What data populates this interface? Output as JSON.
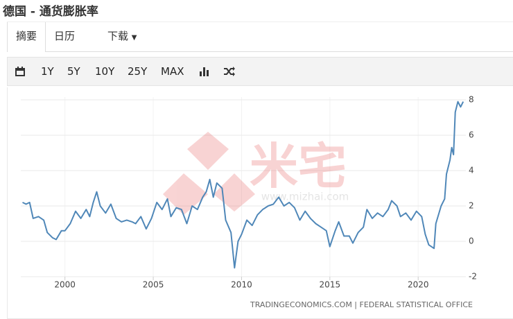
{
  "header": {
    "title": "德国 - 通货膨胀率"
  },
  "tabs": [
    "摘要",
    "日历",
    "下载"
  ],
  "toolbar": [
    "1Y",
    "5Y",
    "10Y",
    "25Y",
    "MAX"
  ],
  "watermark": {
    "brand": "米宅",
    "url": "www.mizhai.com"
  },
  "chart_data": {
    "type": "line",
    "source": "TRADINGECONOMICS.COM | FEDERAL STATISTICAL OFFICE",
    "color": "#4f87b8",
    "x": [
      1997.6,
      1997.8,
      1998.0,
      1998.2,
      1998.5,
      1998.8,
      1999.0,
      1999.3,
      1999.5,
      1999.8,
      2000.0,
      2000.3,
      2000.6,
      2000.9,
      2001.2,
      2001.4,
      2001.6,
      2001.8,
      2002.0,
      2002.3,
      2002.6,
      2002.9,
      2003.2,
      2003.5,
      2003.8,
      2004.0,
      2004.3,
      2004.6,
      2004.9,
      2005.2,
      2005.5,
      2005.8,
      2006.0,
      2006.3,
      2006.6,
      2006.9,
      2007.2,
      2007.5,
      2007.8,
      2008.0,
      2008.2,
      2008.4,
      2008.6,
      2008.9,
      2009.1,
      2009.4,
      2009.6,
      2009.8,
      2010.0,
      2010.3,
      2010.6,
      2010.9,
      2011.2,
      2011.5,
      2011.8,
      2012.1,
      2012.4,
      2012.7,
      2013.0,
      2013.3,
      2013.6,
      2013.9,
      2014.2,
      2014.5,
      2014.8,
      2015.0,
      2015.3,
      2015.5,
      2015.8,
      2016.1,
      2016.3,
      2016.6,
      2016.9,
      2017.1,
      2017.4,
      2017.7,
      2018.0,
      2018.3,
      2018.5,
      2018.8,
      2019.0,
      2019.3,
      2019.6,
      2019.9,
      2020.2,
      2020.4,
      2020.6,
      2020.9,
      2021.0,
      2021.3,
      2021.5,
      2021.6,
      2021.8,
      2021.9,
      2022.0,
      2022.1,
      2022.25,
      2022.4,
      2022.55
    ],
    "values": [
      2.2,
      2.1,
      2.2,
      1.3,
      1.4,
      1.2,
      0.5,
      0.2,
      0.1,
      0.6,
      0.6,
      1.0,
      1.7,
      1.3,
      1.8,
      1.4,
      2.2,
      2.8,
      2.0,
      1.6,
      2.1,
      1.3,
      1.1,
      1.2,
      1.1,
      1.0,
      1.4,
      0.7,
      1.3,
      2.2,
      1.8,
      2.4,
      1.4,
      1.9,
      1.8,
      1.0,
      2.0,
      1.8,
      2.5,
      2.8,
      3.5,
      2.5,
      3.3,
      3.0,
      1.2,
      0.5,
      -1.5,
      0.0,
      0.4,
      1.2,
      0.9,
      1.5,
      1.8,
      2.0,
      2.1,
      2.5,
      2.0,
      2.2,
      1.9,
      1.2,
      1.7,
      1.3,
      1.0,
      0.8,
      0.6,
      -0.3,
      0.6,
      1.1,
      0.3,
      0.3,
      -0.1,
      0.5,
      0.8,
      1.8,
      1.3,
      1.6,
      1.4,
      1.8,
      2.3,
      2.0,
      1.4,
      1.6,
      1.2,
      1.7,
      1.4,
      0.4,
      -0.2,
      -0.4,
      1.0,
      2.0,
      2.4,
      3.8,
      4.6,
      5.3,
      4.9,
      7.3,
      7.9,
      7.6,
      7.9
    ],
    "xlim": [
      1997.5,
      2022.7
    ],
    "xticks": [
      2000,
      2005,
      2010,
      2015,
      2020
    ],
    "ylim": [
      -2,
      8
    ],
    "yticks": [
      -2,
      0,
      2,
      4,
      6,
      8
    ],
    "grid": true
  }
}
